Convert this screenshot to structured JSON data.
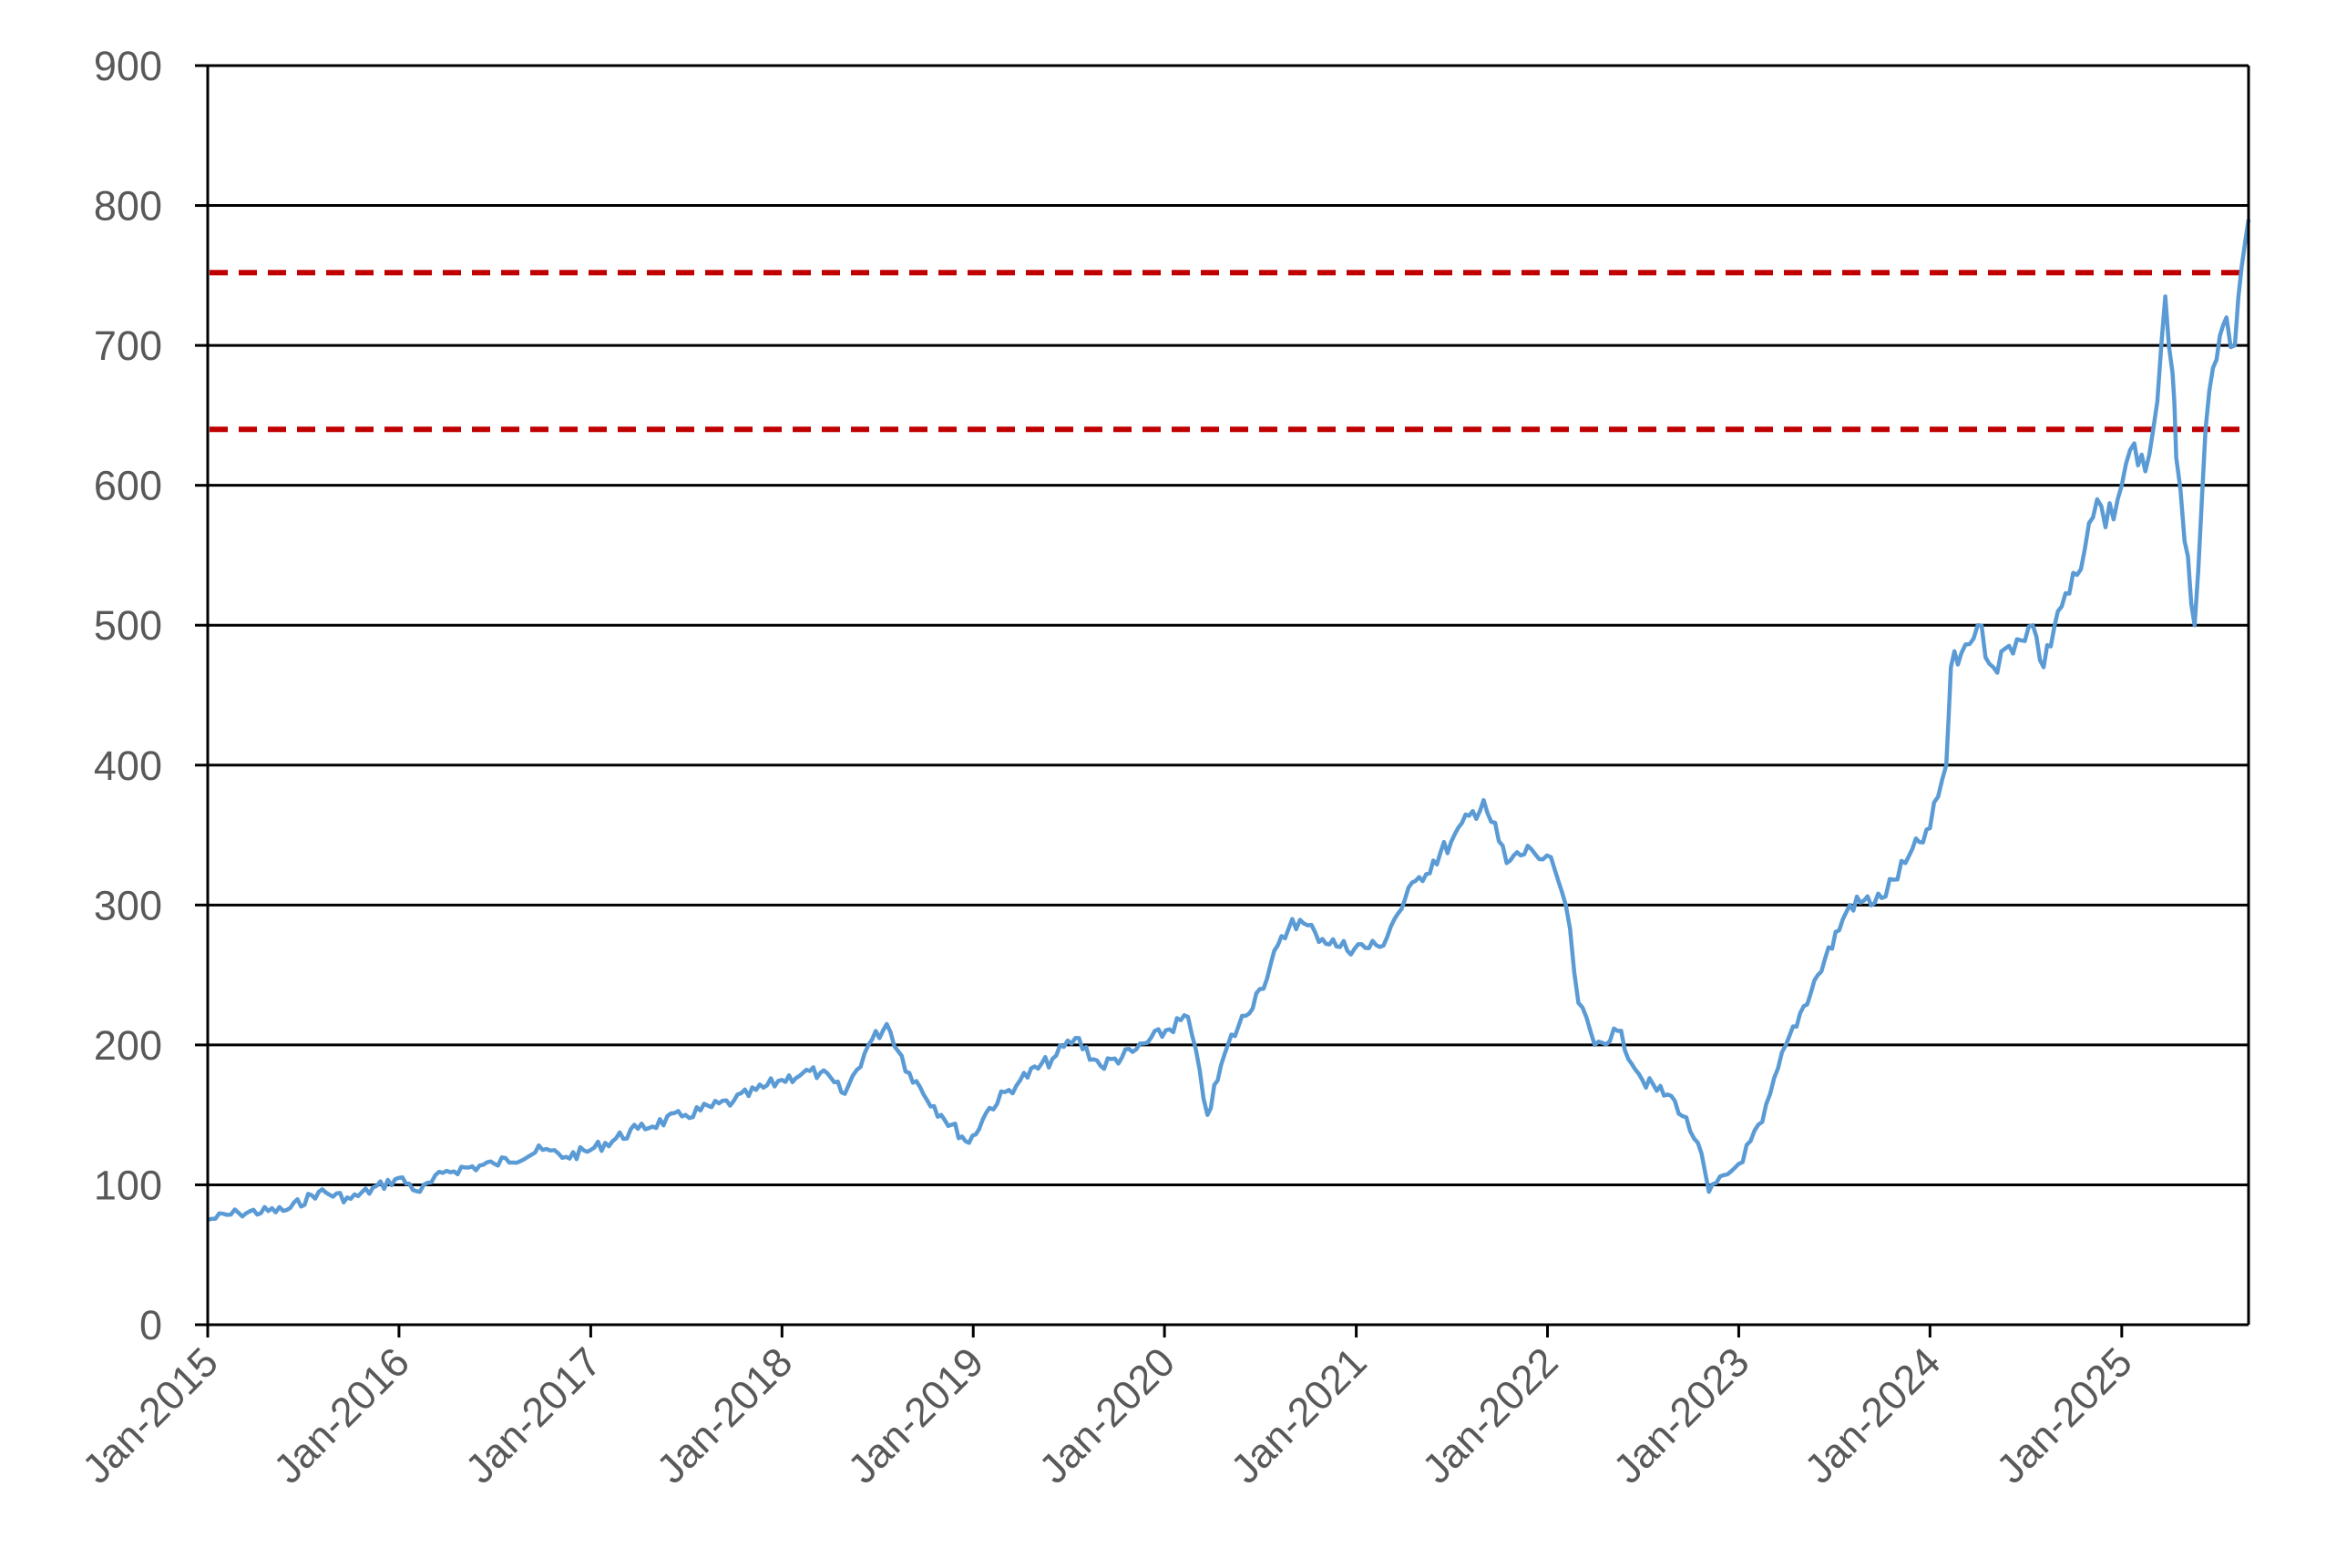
{
  "chart_data": {
    "type": "line",
    "title": "",
    "xlabel": "",
    "ylabel": "",
    "ylim": [
      0,
      900
    ],
    "y_ticks": [
      0,
      100,
      200,
      300,
      400,
      500,
      600,
      700,
      800,
      900
    ],
    "y_tick_labels": [
      "0",
      "100",
      "200",
      "300",
      "400",
      "500",
      "600",
      "700",
      "800",
      "900"
    ],
    "x_range": [
      "2015-01-01",
      "2025-08-31"
    ],
    "x_ticks": [
      "2015-01-01",
      "2016-01-01",
      "2017-01-01",
      "2018-01-01",
      "2019-01-01",
      "2020-01-01",
      "2021-01-01",
      "2022-01-01",
      "2023-01-01",
      "2024-01-01",
      "2025-01-01"
    ],
    "x_tick_labels": [
      "Jan-2015",
      "Jan-2016",
      "Jan-2017",
      "Jan-2018",
      "Jan-2019",
      "Jan-2020",
      "Jan-2021",
      "Jan-2022",
      "Jan-2023",
      "Jan-2024",
      "Jan-2025"
    ],
    "grid": "horizontal",
    "legend": "none",
    "colors": {
      "series": "#5b9bd5",
      "reference": "#c00000",
      "grid": "#000000",
      "tick_text": "#595959"
    },
    "reference_lines": [
      {
        "y": 752,
        "style": "dashed"
      },
      {
        "y": 640,
        "style": "dashed"
      }
    ],
    "series": [
      {
        "x": [
          "2015-01-01",
          "2015-03-01",
          "2015-06-01",
          "2015-08-01",
          "2015-10-01",
          "2016-01-01",
          "2016-02-10",
          "2016-04-01",
          "2016-07-01",
          "2016-10-01",
          "2016-11-15",
          "2017-01-01",
          "2017-04-01",
          "2017-07-01",
          "2017-10-01",
          "2018-01-01",
          "2018-02-10",
          "2018-03-15",
          "2018-05-01",
          "2018-06-15",
          "2018-07-20",
          "2018-09-01",
          "2018-11-01",
          "2018-12-24",
          "2019-02-01",
          "2019-04-01",
          "2019-06-01",
          "2019-07-15",
          "2019-09-01",
          "2019-11-01",
          "2020-02-15",
          "2020-03-23",
          "2020-05-01",
          "2020-07-01",
          "2020-09-01",
          "2020-10-15",
          "2020-12-01",
          "2021-02-15",
          "2021-03-15",
          "2021-05-01",
          "2021-07-01",
          "2021-09-01",
          "2021-10-15",
          "2021-12-01",
          "2022-01-15",
          "2022-02-05",
          "2022-03-01",
          "2022-04-01",
          "2022-05-15",
          "2022-07-01",
          "2022-09-01",
          "2022-10-15",
          "2022-11-05",
          "2023-01-01",
          "2023-02-15",
          "2023-04-01",
          "2023-06-01",
          "2023-08-01",
          "2023-10-01",
          "2023-11-15",
          "2024-01-01",
          "2024-02-01",
          "2024-02-10",
          "2024-03-01",
          "2024-04-01",
          "2024-05-01",
          "2024-06-15",
          "2024-07-15",
          "2024-08-05",
          "2024-09-01",
          "2024-10-15",
          "2024-11-15",
          "2024-12-01",
          "2025-01-01",
          "2025-01-25",
          "2025-02-15",
          "2025-03-10",
          "2025-03-25",
          "2025-04-08",
          "2025-04-15",
          "2025-05-01",
          "2025-05-20",
          "2025-06-10",
          "2025-07-01",
          "2025-07-20",
          "2025-08-05",
          "2025-08-31"
        ],
        "values": [
          75,
          80,
          82,
          95,
          90,
          105,
          95,
          110,
          115,
          125,
          120,
          125,
          140,
          150,
          160,
          175,
          180,
          180,
          165,
          200,
          215,
          180,
          150,
          130,
          155,
          175,
          190,
          205,
          185,
          195,
          220,
          150,
          200,
          240,
          290,
          280,
          270,
          270,
          290,
          320,
          345,
          375,
          330,
          340,
          325,
          300,
          230,
          200,
          210,
          175,
          160,
          130,
          95,
          115,
          145,
          200,
          250,
          300,
          305,
          330,
          355,
          400,
          470,
          480,
          500,
          470,
          490,
          500,
          470,
          510,
          540,
          590,
          570,
          600,
          630,
          610,
          660,
          735,
          680,
          620,
          560,
          500,
          640,
          690,
          720,
          700,
          790
        ]
      }
    ]
  }
}
